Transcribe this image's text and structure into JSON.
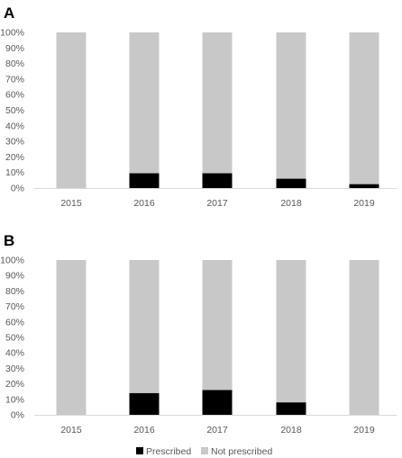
{
  "chart_data": [
    {
      "type": "bar",
      "stacked": true,
      "percent_stacked": true,
      "panel_label": "A",
      "categories": [
        "2015",
        "2016",
        "2017",
        "2018",
        "2019"
      ],
      "series": [
        {
          "name": "Prescribed",
          "values": [
            0,
            9.5,
            9.5,
            6,
            2.5
          ]
        },
        {
          "name": "Not prescribed",
          "values": [
            100,
            90.5,
            90.5,
            94,
            97.5
          ]
        }
      ],
      "ylim": [
        0,
        100
      ],
      "yticks": [
        "0%",
        "10%",
        "20%",
        "30%",
        "40%",
        "50%",
        "60%",
        "70%",
        "80%",
        "90%",
        "100%"
      ],
      "grid": false
    },
    {
      "type": "bar",
      "stacked": true,
      "percent_stacked": true,
      "panel_label": "B",
      "categories": [
        "2015",
        "2016",
        "2017",
        "2018",
        "2019"
      ],
      "series": [
        {
          "name": "Prescribed",
          "values": [
            0,
            14,
            16,
            8,
            0
          ]
        },
        {
          "name": "Not prescribed",
          "values": [
            100,
            86,
            84,
            92,
            100
          ]
        }
      ],
      "ylim": [
        0,
        100
      ],
      "yticks": [
        "0%",
        "10%",
        "20%",
        "30%",
        "40%",
        "50%",
        "60%",
        "70%",
        "80%",
        "90%",
        "100%"
      ],
      "grid": false
    }
  ],
  "legend": {
    "placement": "bottom",
    "items": [
      {
        "label": "Prescribed",
        "color": "#000000"
      },
      {
        "label": "Not prescribed",
        "color": "#c8c8c8"
      }
    ]
  },
  "colors": {
    "prescribed": "#000000",
    "not_prescribed": "#c8c8c8",
    "axis": "#d9d9d9",
    "tick_text": "#595959"
  }
}
